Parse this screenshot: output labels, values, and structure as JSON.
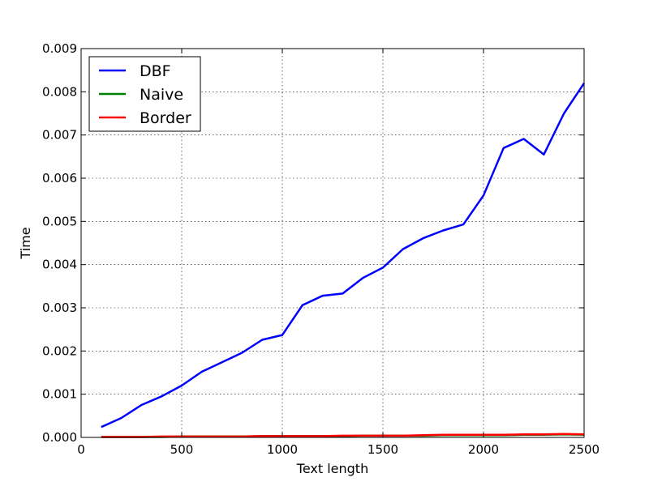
{
  "chart_data": {
    "type": "line",
    "title": "",
    "xlabel": "Text length",
    "ylabel": "Time",
    "xlim": [
      0,
      2500
    ],
    "ylim": [
      0,
      0.009
    ],
    "xticks": [
      0,
      500,
      1000,
      1500,
      2000,
      2500
    ],
    "xtick_labels": [
      "0",
      "500",
      "1000",
      "1500",
      "2000",
      "2500"
    ],
    "yticks": [
      0,
      0.001,
      0.002,
      0.003,
      0.004,
      0.005,
      0.006,
      0.007,
      0.008,
      0.009
    ],
    "ytick_labels": [
      "0.000",
      "0.001",
      "0.002",
      "0.003",
      "0.004",
      "0.005",
      "0.006",
      "0.007",
      "0.008",
      "0.009"
    ],
    "grid": true,
    "legend_position": "top-left",
    "x": [
      100,
      200,
      300,
      400,
      500,
      600,
      700,
      800,
      900,
      1000,
      1100,
      1200,
      1300,
      1400,
      1500,
      1600,
      1700,
      1800,
      1900,
      2000,
      2100,
      2200,
      2300,
      2400,
      2500
    ],
    "series": [
      {
        "name": "DBF",
        "color": "#0000ff",
        "values": [
          0.00024,
          0.00045,
          0.00075,
          0.00095,
          0.0012,
          0.00152,
          0.00174,
          0.00196,
          0.00226,
          0.00237,
          0.00306,
          0.00328,
          0.00333,
          0.00369,
          0.00393,
          0.00436,
          0.00461,
          0.00479,
          0.00493,
          0.0056,
          0.0067,
          0.00691,
          0.00655,
          0.0075,
          0.0082
        ]
      },
      {
        "name": "Naive",
        "color": "#008000",
        "values": [
          1e-05,
          1e-05,
          1e-05,
          1e-05,
          2e-05,
          2e-05,
          2e-05,
          2e-05,
          3e-05,
          3e-05,
          3e-05,
          3e-05,
          3e-05,
          4e-05,
          4e-05,
          4e-05,
          4e-05,
          5e-05,
          5e-05,
          5e-05,
          5e-05,
          6e-05,
          6e-05,
          7e-05,
          6e-05
        ]
      },
      {
        "name": "Border",
        "color": "#ff0000",
        "values": [
          1e-05,
          1e-05,
          1e-05,
          2e-05,
          2e-05,
          2e-05,
          2e-05,
          2e-05,
          3e-05,
          3e-05,
          3e-05,
          3e-05,
          4e-05,
          4e-05,
          4e-05,
          4e-05,
          5e-05,
          6e-05,
          6e-05,
          6e-05,
          6e-05,
          7e-05,
          7e-05,
          8e-05,
          7e-05
        ]
      }
    ]
  }
}
